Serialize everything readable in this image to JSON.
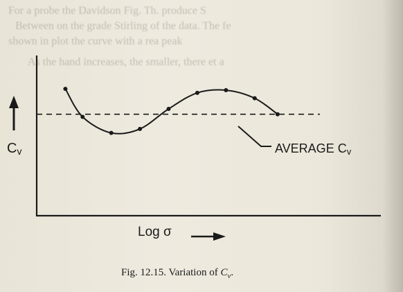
{
  "figure": {
    "caption_prefix": "Fig. 12.15. Variation of ",
    "caption_var": "C",
    "caption_sub": "v",
    "caption_suffix": "."
  },
  "chart_data": {
    "type": "line",
    "xlabel": "Log σ",
    "ylabel": "Cv",
    "annotation": "AVERAGE Cv",
    "series": [
      {
        "x": [
          1.0,
          1.6,
          2.6,
          3.6,
          4.6,
          5.6,
          6.6,
          7.6,
          8.4
        ],
        "values": [
          0.95,
          0.74,
          0.62,
          0.65,
          0.8,
          0.92,
          0.94,
          0.88,
          0.76
        ]
      }
    ],
    "average": 0.76,
    "xlim": [
      0,
      12
    ],
    "ylim": [
      0,
      1.2
    ],
    "grid": false,
    "markers": true
  }
}
